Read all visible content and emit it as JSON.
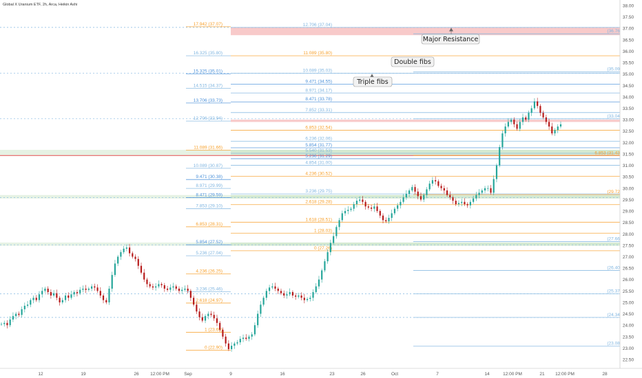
{
  "chart_data": {
    "type": "candlestick",
    "title": "Global X Uranium ETF, 2h, Arca, Heikin Ashi",
    "ylim": [
      22.25,
      38.0
    ],
    "y_ticks": [
      "38.00",
      "37.50",
      "37.00",
      "36.50",
      "36.00",
      "35.50",
      "35.00",
      "34.50",
      "34.00",
      "33.50",
      "33.00",
      "32.50",
      "32.00",
      "31.50",
      "31.00",
      "30.50",
      "30.00",
      "29.50",
      "29.00",
      "28.50",
      "28.00",
      "27.50",
      "27.00",
      "26.50",
      "26.00",
      "25.50",
      "25.00",
      "24.50",
      "24.00",
      "23.50",
      "23.00",
      "22.50"
    ],
    "x_ticks": [
      "12",
      "19",
      "26",
      "12:00 PM",
      "Sep",
      "9",
      "16",
      "23",
      "26",
      "Oct",
      "7",
      "14",
      "12:00 PM",
      "21",
      "12:00 PM",
      "28"
    ],
    "fib_sets": [
      {
        "name": "left",
        "levels": [
          {
            "label": "17.942 (37.07)",
            "price": 37.07,
            "color": "#f7a02b",
            "from": "left_start",
            "to": "mid_start"
          },
          {
            "label": "16.325 (35.80)",
            "price": 35.8,
            "color": "#7fb5e0",
            "from": "left_start",
            "to": "mid_start"
          },
          {
            "label": "15.325 (35.01)",
            "price": 35.01,
            "color": "#4a90d9",
            "from": "left_start",
            "to": "mid_start"
          },
          {
            "label": "14.515 (34.37)",
            "price": 34.37,
            "color": "#7fb5e0",
            "from": "left_start",
            "to": "mid_start"
          },
          {
            "label": "13.706 (33.73)",
            "price": 33.73,
            "color": "#4a90d9",
            "from": "left_start",
            "to": "mid_start"
          },
          {
            "label": "12.706 (32.94)",
            "price": 32.94,
            "color": "#7fb5e0",
            "from": "left_start",
            "to": "mid_start"
          },
          {
            "label": "11.089 (31.66)",
            "price": 31.66,
            "color": "#f7a02b",
            "from": "left_start",
            "to": "mid_start"
          },
          {
            "label": "10.089 (30.87)",
            "price": 30.87,
            "color": "#7fb5e0",
            "from": "left_start",
            "to": "mid_start"
          },
          {
            "label": "9.471 (30.38)",
            "price": 30.38,
            "color": "#4a90d9",
            "from": "left_start",
            "to": "mid_start"
          },
          {
            "label": "8.971 (29.99)",
            "price": 29.99,
            "color": "#7fb5e0",
            "from": "left_start",
            "to": "mid_start"
          },
          {
            "label": "8.471 (29.59)",
            "price": 29.59,
            "color": "#4a90d9",
            "from": "left_start",
            "to": "mid_start"
          },
          {
            "label": "7.853 (29.10)",
            "price": 29.1,
            "color": "#7fb5e0",
            "from": "left_start",
            "to": "mid_start"
          },
          {
            "label": "6.853 (28.31)",
            "price": 28.31,
            "color": "#f7a02b",
            "from": "left_start",
            "to": "mid_start"
          },
          {
            "label": "5.854 (27.52)",
            "price": 27.52,
            "color": "#4a90d9",
            "from": "left_start",
            "to": "mid_start"
          },
          {
            "label": "5.236 (27.04)",
            "price": 27.04,
            "color": "#7fb5e0",
            "from": "left_start",
            "to": "mid_start"
          },
          {
            "label": "4.236 (26.25)",
            "price": 26.25,
            "color": "#f7a02b",
            "from": "left_start",
            "to": "mid_start"
          },
          {
            "label": "3.236 (25.46)",
            "price": 25.46,
            "color": "#7fb5e0",
            "from": "left_start",
            "to": "mid_start"
          },
          {
            "label": "2.618 (24.97)",
            "price": 24.97,
            "color": "#f7a02b",
            "from": "left_start",
            "to": "mid_start"
          },
          {
            "label": "1 (23.69)",
            "price": 23.69,
            "color": "#f7a02b",
            "from": "left_start",
            "to": "mid_start"
          },
          {
            "label": "0 (22.90)",
            "price": 22.9,
            "color": "#f7a02b",
            "from": "left_start",
            "to": "mid_start"
          }
        ]
      },
      {
        "name": "mid",
        "levels": [
          {
            "label": "12.706 (37.04)",
            "price": 37.04,
            "color": "#7fb5e0"
          },
          {
            "label": "11.089 (35.80)",
            "price": 35.8,
            "color": "#f7a02b"
          },
          {
            "label": "10.089 (35.03)",
            "price": 35.03,
            "color": "#7fb5e0"
          },
          {
            "label": "9.471 (34.55)",
            "price": 34.55,
            "color": "#4a90d9"
          },
          {
            "label": "8.971 (34.17)",
            "price": 34.17,
            "color": "#7fb5e0"
          },
          {
            "label": "8.471 (33.78)",
            "price": 33.78,
            "color": "#4a90d9"
          },
          {
            "label": "7.852 (33.31)",
            "price": 33.31,
            "color": "#7fb5e0"
          },
          {
            "label": "6.853 (32.54)",
            "price": 32.54,
            "color": "#f7a02b"
          },
          {
            "label": "6.236 (32.06)",
            "price": 32.06,
            "color": "#7fb5e0"
          },
          {
            "label": "5.854 (31.77)",
            "price": 31.77,
            "color": "#4a90d9"
          },
          {
            "label": "5.540 (31.53)",
            "price": 31.53,
            "color": "#7fb5e0"
          },
          {
            "label": "5.236 (31.29)",
            "price": 31.29,
            "color": "#4a90d9"
          },
          {
            "label": "4.854 (31.00)",
            "price": 31.0,
            "color": "#7fb5e0"
          },
          {
            "label": "4.236 (30.52)",
            "price": 30.52,
            "color": "#f7a02b"
          },
          {
            "label": "3.236 (29.75)",
            "price": 29.75,
            "color": "#7fb5e0"
          },
          {
            "label": "2.618 (29.28)",
            "price": 29.28,
            "color": "#f7a02b"
          },
          {
            "label": "1.618 (28.51)",
            "price": 28.51,
            "color": "#f7a02b"
          },
          {
            "label": "1 (28.03)",
            "price": 28.03,
            "color": "#f7a02b"
          },
          {
            "label": "0 (27.26)",
            "price": 27.26,
            "color": "#f7a02b"
          }
        ]
      },
      {
        "name": "right",
        "levels": [
          {
            "label": "(36.76)",
            "price": 36.76,
            "color": "#7fb5e0"
          },
          {
            "label": "(35.09)",
            "price": 35.09,
            "color": "#7fb5e0"
          },
          {
            "label": "(33.04)",
            "price": 33.04,
            "color": "#7fb5e0"
          },
          {
            "label": "6.853 (31.43)",
            "price": 31.43,
            "color": "#f7a02b"
          },
          {
            "label": "(29.72)",
            "price": 29.72,
            "color": "#f7a02b"
          },
          {
            "label": "(27.66)",
            "price": 27.66,
            "color": "#7fb5e0"
          },
          {
            "label": "(26.40)",
            "price": 26.4,
            "color": "#7fb5e0"
          },
          {
            "label": "(25.37)",
            "price": 25.37,
            "color": "#7fb5e0"
          },
          {
            "label": "(24.34)",
            "price": 24.34,
            "color": "#7fb5e0"
          },
          {
            "label": "(23.08)",
            "price": 23.08,
            "color": "#7fb5e0"
          }
        ]
      }
    ],
    "zones": [
      {
        "name": "major-resistance",
        "from": 36.7,
        "to": 37.05,
        "color": "#f4a6a6"
      },
      {
        "name": "red-band-33",
        "from": 32.9,
        "to": 33.0,
        "color": "#f4a6a6"
      },
      {
        "name": "green-band-31-5",
        "from": 31.45,
        "to": 31.68,
        "color": "#b7dbb2"
      },
      {
        "name": "green-band-29-6",
        "from": 29.55,
        "to": 29.7,
        "color": "#b7dbb2"
      },
      {
        "name": "green-band-27-5",
        "from": 27.48,
        "to": 27.62,
        "color": "#b7dbb2"
      }
    ],
    "support_line": {
      "price": 31.43,
      "color": "#e04a4a"
    },
    "dashed_levels": [
      37.04,
      35.03,
      33.04,
      29.59,
      27.52,
      25.37,
      24.34
    ],
    "annotations": [
      {
        "text": "Major Resistance",
        "target_price": 37.04
      },
      {
        "text": "Double fibs",
        "target_price": 35.03
      },
      {
        "text": "Triple fibs",
        "target_price": 34.3
      }
    ],
    "price_series": [
      24.05,
      24.1,
      24.0,
      24.25,
      24.4,
      24.5,
      24.45,
      24.7,
      24.85,
      24.9,
      25.1,
      25.2,
      25.1,
      25.35,
      25.5,
      25.6,
      25.45,
      25.3,
      25.4,
      25.2,
      25.0,
      25.1,
      25.3,
      25.2,
      25.35,
      25.45,
      25.4,
      25.55,
      25.6,
      25.55,
      25.6,
      25.7,
      25.65,
      25.5,
      25.3,
      25.1,
      25.0,
      25.6,
      26.2,
      26.7,
      27.0,
      27.2,
      27.35,
      27.4,
      27.15,
      27.0,
      26.9,
      26.6,
      26.3,
      26.0,
      25.8,
      25.7,
      25.65,
      25.7,
      25.8,
      25.75,
      25.6,
      25.55,
      25.65,
      25.7,
      25.6,
      25.5,
      25.55,
      25.6,
      25.5,
      25.2,
      24.9,
      24.6,
      24.35,
      24.2,
      24.4,
      24.5,
      24.45,
      24.3,
      24.1,
      23.8,
      23.5,
      23.2,
      22.95,
      23.1,
      23.2,
      23.25,
      23.4,
      23.45,
      23.4,
      23.5,
      23.6,
      24.0,
      24.5,
      24.9,
      25.2,
      25.5,
      25.65,
      25.7,
      25.6,
      25.5,
      25.4,
      25.3,
      25.35,
      25.45,
      25.3,
      25.25,
      25.3,
      25.2,
      25.1,
      25.15,
      25.2,
      25.45,
      25.7,
      26.0,
      26.4,
      26.8,
      27.2,
      27.6,
      27.9,
      28.3,
      28.6,
      28.9,
      29.0,
      29.05,
      29.1,
      29.3,
      29.45,
      29.5,
      29.4,
      29.2,
      29.15,
      29.1,
      29.2,
      29.0,
      28.8,
      28.6,
      28.55,
      28.7,
      28.9,
      29.1,
      29.25,
      29.4,
      29.6,
      29.75,
      29.9,
      30.05,
      29.85,
      29.65,
      29.5,
      29.7,
      29.95,
      30.2,
      30.35,
      30.3,
      30.1,
      30.0,
      29.9,
      29.7,
      29.6,
      29.45,
      29.3,
      29.35,
      29.4,
      29.3,
      29.25,
      29.4,
      29.55,
      29.7,
      29.8,
      29.9,
      30.0,
      30.0,
      29.8,
      30.4,
      31.0,
      31.8,
      32.4,
      32.7,
      32.9,
      33.0,
      32.8,
      32.6,
      32.9,
      33.1,
      33.0,
      33.3,
      33.5,
      33.8,
      33.6,
      33.3,
      33.1,
      32.9,
      32.7,
      32.4,
      32.55,
      32.7,
      32.8
    ]
  }
}
